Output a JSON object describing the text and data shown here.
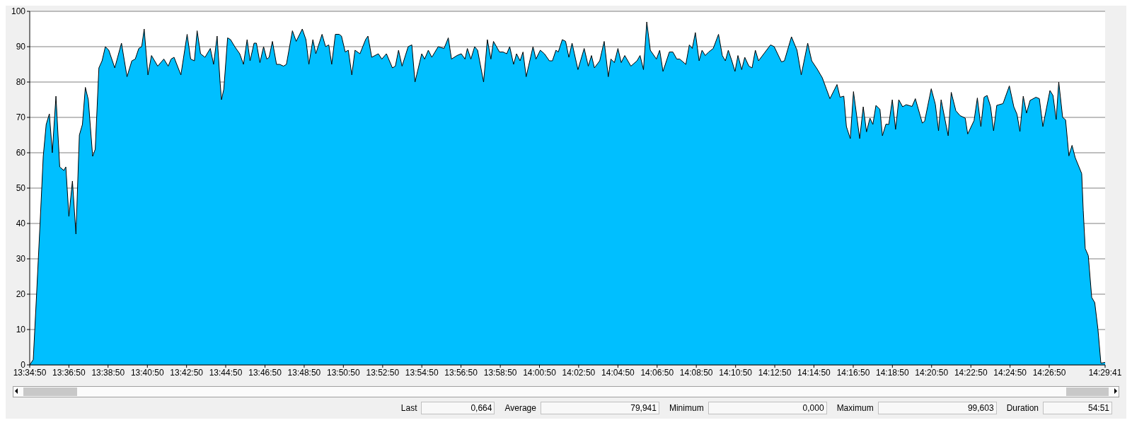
{
  "chart_data": {
    "type": "area",
    "x": [
      13.5806,
      13.5836,
      13.5863,
      13.5894,
      13.5921,
      13.5946,
      13.5973,
      13.5998,
      13.6029,
      13.6061,
      13.6096,
      13.6113,
      13.6139,
      13.6169,
      13.6199,
      13.6228,
      13.6254,
      13.6279,
      13.6304,
      13.6341,
      13.6363,
      13.6394,
      13.6421,
      13.6449,
      13.6478,
      13.6529,
      13.6586,
      13.6633,
      13.6674,
      13.6703,
      13.6733,
      13.6758,
      13.6779,
      13.6811,
      13.6841,
      13.6894,
      13.6946,
      13.6983,
      13.7008,
      13.7033,
      13.7091,
      13.7144,
      13.7174,
      13.7206,
      13.7229,
      13.7258,
      13.7296,
      13.7341,
      13.7369,
      13.7399,
      13.7424,
      13.7436,
      13.7456,
      13.7488,
      13.7513,
      13.7549,
      13.7591,
      13.7623,
      13.7654,
      13.7679,
      13.7713,
      13.7733,
      13.7763,
      13.7794,
      13.7821,
      13.7841,
      13.7869,
      13.7904,
      13.7931,
      13.7963,
      13.7988,
      13.8039,
      13.8071,
      13.8123,
      13.8154,
      13.8179,
      13.8213,
      13.8238,
      13.8291,
      13.8321,
      13.8348,
      13.8373,
      13.8404,
      13.8436,
      13.8456,
      13.8488,
      13.8514,
      13.8544,
      13.8571,
      13.8613,
      13.8661,
      13.8681,
      13.8713,
      13.8769,
      13.8799,
      13.8838,
      13.8889,
      13.8914,
      13.8941,
      13.8971,
      13.9023,
      13.9054,
      13.9081,
      13.9138,
      13.9163,
      13.9194,
      13.9224,
      13.9278,
      13.9328,
      13.9364,
      13.9391,
      13.9438,
      13.9474,
      13.9506,
      13.9526,
      13.9556,
      13.9588,
      13.9613,
      13.9664,
      13.9696,
      13.9726,
      13.9748,
      13.9799,
      13.9829,
      13.9861,
      13.9886,
      13.9919,
      13.9944,
      13.9974,
      13.9999,
      14.0026,
      14.0084,
      14.0109,
      14.0146,
      14.0181,
      14.0223,
      14.0249,
      14.0279,
      14.0299,
      14.0333,
      14.0361,
      14.0389,
      14.0416,
      14.0466,
      14.0519,
      14.0554,
      14.0581,
      14.0606,
      14.0651,
      14.0689,
      14.0724,
      14.0746,
      14.0776,
      14.0806,
      14.0834,
      14.0864,
      14.0916,
      14.0968,
      14.0994,
      14.1023,
      14.1051,
      14.1081,
      14.1133,
      14.1161,
      14.1189,
      14.1243,
      14.1273,
      14.1306,
      14.1331,
      14.1383,
      14.1413,
      14.1438,
      14.1464,
      14.1496,
      14.1521,
      14.1548,
      14.1578,
      14.1616,
      14.1661,
      14.1693,
      14.1719,
      14.1744,
      14.1774,
      14.1801,
      14.1826,
      14.1858,
      14.1884,
      14.1919,
      14.1946,
      14.1974,
      14.2001,
      14.2103,
      14.2134,
      14.2196,
      14.2221,
      14.2281,
      14.2328,
      14.2364,
      14.2419,
      14.2453,
      14.2501,
      14.2543,
      14.2608,
      14.2668,
      14.2694,
      14.2726,
      14.2748,
      14.2781,
      14.2808,
      14.2861,
      14.2891,
      14.2919,
      14.2948,
      14.2973,
      14.2999,
      14.3033,
      14.3054,
      14.3084,
      14.3108,
      14.3138,
      14.3166,
      14.3193,
      14.3226,
      14.3256,
      14.3306,
      14.3334,
      14.3393,
      14.3413,
      14.3469,
      14.3504,
      14.3531,
      14.3553,
      14.3613,
      14.3639,
      14.3678,
      14.3714,
      14.3758,
      14.3779,
      14.3833,
      14.3861,
      14.3891,
      14.3918,
      14.3944,
      14.3973,
      14.3999,
      14.4026,
      14.4079,
      14.4133,
      14.4171,
      14.4198,
      14.4223,
      14.4251,
      14.4279,
      14.4309,
      14.4359,
      14.4388,
      14.4418,
      14.4478,
      14.4504,
      14.4531,
      14.4553,
      14.4586,
      14.4611,
      14.4639,
      14.4666,
      14.4693,
      14.4748,
      14.4761,
      14.4778,
      14.4804,
      14.4833,
      14.4859,
      14.4886,
      14.4911,
      14.4947
    ],
    "series": [
      {
        "color": "#00bfff",
        "values": [
          0,
          1.5,
          19,
          40,
          59,
          68,
          71,
          60,
          76,
          56,
          55,
          56,
          42,
          52,
          37,
          65,
          68,
          78.5,
          75,
          59,
          61,
          84,
          86,
          90,
          89,
          84,
          91,
          81.5,
          86,
          86.5,
          89.5,
          90,
          95,
          82,
          87.5,
          84.5,
          86.5,
          84.5,
          86.5,
          87,
          82,
          93.5,
          86.5,
          86,
          94.5,
          88,
          87,
          89.5,
          85,
          93,
          80,
          75,
          78,
          92.5,
          92,
          90,
          88,
          85,
          92,
          86,
          91,
          91,
          85.5,
          90,
          86.5,
          87,
          91.5,
          85,
          85,
          84.5,
          85,
          94.5,
          91.5,
          95,
          92,
          85,
          92,
          88,
          93.5,
          90,
          90.5,
          85,
          93.5,
          93.5,
          93,
          88.5,
          89,
          82,
          89,
          88,
          92,
          93,
          87,
          88,
          86.5,
          88,
          84,
          84.5,
          89,
          84.5,
          90,
          90.5,
          80,
          88,
          86.5,
          89,
          87,
          90,
          89.5,
          92.5,
          86.5,
          87.5,
          88,
          86.5,
          89.5,
          86.5,
          90,
          89,
          80,
          92,
          86.5,
          91.5,
          88.5,
          88.5,
          88,
          90,
          85,
          88,
          86,
          88.5,
          81.5,
          90,
          86.5,
          89,
          88,
          86,
          86,
          89,
          88.5,
          92,
          91.5,
          87,
          91,
          83.5,
          89.5,
          84.5,
          87.5,
          84,
          86,
          91.5,
          81.5,
          86.5,
          85.5,
          89.5,
          85.5,
          87.5,
          84.5,
          86,
          87.5,
          83.5,
          97,
          89,
          86.5,
          89,
          83,
          88.5,
          88.5,
          86.5,
          86.5,
          85,
          90.5,
          89.5,
          94,
          86,
          89,
          87.5,
          88.5,
          89.5,
          93.5,
          87.5,
          86,
          89,
          86,
          83,
          87.5,
          83.5,
          87,
          84.5,
          84,
          89,
          86,
          90.5,
          90,
          85.7,
          86,
          92.8,
          89,
          82,
          91,
          86,
          83.6,
          81.2,
          75.3,
          79.3,
          75.7,
          76,
          67.4,
          64,
          77.3,
          64,
          73,
          65.9,
          69.8,
          68,
          73.4,
          72.3,
          64.8,
          68.1,
          68,
          75,
          66.6,
          75,
          73,
          73.6,
          73.1,
          75.3,
          68.4,
          68.9,
          78.1,
          73.7,
          66.2,
          75,
          64.8,
          77.1,
          71.9,
          70.5,
          69.8,
          65.3,
          69.1,
          75.5,
          67.4,
          75.7,
          76.2,
          73.1,
          66.2,
          73.4,
          73.9,
          78.9,
          73,
          70.9,
          66,
          76,
          71.2,
          74.8,
          75.7,
          75.3,
          67.4,
          77.6,
          76.2,
          69.4,
          80,
          70,
          69.3,
          59.1,
          62.1,
          58.6,
          54.1,
          43.7,
          32.9,
          30.9,
          19.1,
          17.6,
          10.1,
          0.5,
          0.7
        ]
      }
    ],
    "xlim": [
      13.5806,
      14.4947
    ],
    "xticks": [
      {
        "value": 13.5806,
        "label": "13:34:50"
      },
      {
        "value": 13.6139,
        "label": "13:36:50"
      },
      {
        "value": 13.6472,
        "label": "13:38:50"
      },
      {
        "value": 13.6806,
        "label": "13:40:50"
      },
      {
        "value": 13.7139,
        "label": "13:42:50"
      },
      {
        "value": 13.7472,
        "label": "13:44:50"
      },
      {
        "value": 13.7806,
        "label": "13:46:50"
      },
      {
        "value": 13.8139,
        "label": "13:48:50"
      },
      {
        "value": 13.8472,
        "label": "13:50:50"
      },
      {
        "value": 13.8806,
        "label": "13:52:50"
      },
      {
        "value": 13.9139,
        "label": "13:54:50"
      },
      {
        "value": 13.9472,
        "label": "13:56:50"
      },
      {
        "value": 13.9806,
        "label": "13:58:50"
      },
      {
        "value": 14.0139,
        "label": "14:00:50"
      },
      {
        "value": 14.0472,
        "label": "14:02:50"
      },
      {
        "value": 14.0806,
        "label": "14:04:50"
      },
      {
        "value": 14.1139,
        "label": "14:06:50"
      },
      {
        "value": 14.1472,
        "label": "14:08:50"
      },
      {
        "value": 14.1806,
        "label": "14:10:50"
      },
      {
        "value": 14.2139,
        "label": "14:12:50"
      },
      {
        "value": 14.2472,
        "label": "14:14:50"
      },
      {
        "value": 14.2806,
        "label": "14:16:50"
      },
      {
        "value": 14.3139,
        "label": "14:18:50"
      },
      {
        "value": 14.3472,
        "label": "14:20:50"
      },
      {
        "value": 14.3806,
        "label": "14:22:50"
      },
      {
        "value": 14.4139,
        "label": "14:24:50"
      },
      {
        "value": 14.4472,
        "label": "14:26:50"
      },
      {
        "value": 14.4947,
        "label": "14:29:41"
      }
    ],
    "ylim": [
      0,
      100
    ],
    "yticks": [
      0,
      10,
      20,
      30,
      40,
      50,
      60,
      70,
      80,
      90,
      100
    ],
    "grid": "y",
    "annotations": [
      "Last",
      "0,664",
      "Average",
      "79,941",
      "Minimum",
      "0,000",
      "Maximum",
      "99,603",
      "Duration",
      "54:51"
    ]
  }
}
